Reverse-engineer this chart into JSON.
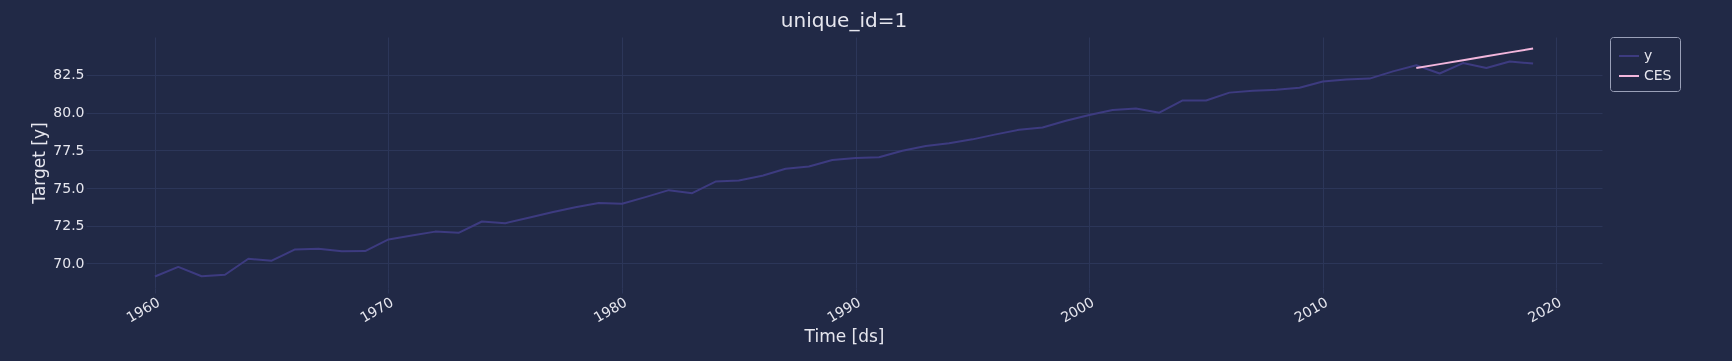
{
  "chart_data": {
    "type": "line",
    "title": "unique_id=1",
    "xlabel": "Time [ds]",
    "ylabel": "Target [y]",
    "xlim": [
      1957.05,
      2021.95
    ],
    "xticks": [
      1960,
      1970,
      1980,
      1990,
      2000,
      2010,
      2020
    ],
    "ylim": [
      68.37,
      85.02
    ],
    "yticks": [
      {
        "value": 70,
        "label": "70.0"
      },
      72.5,
      {
        "value": 75,
        "label": "75.0"
      },
      77.5,
      {
        "value": 80,
        "label": "80.0"
      },
      82.5
    ],
    "grid": true,
    "legend": "top right",
    "line_style": "solid",
    "marker": "none",
    "series": [
      {
        "name": "y",
        "color": "#3d3b80",
        "x": [
          1960,
          1961,
          1962,
          1963,
          1964,
          1965,
          1966,
          1967,
          1968,
          1969,
          1970,
          1971,
          1972,
          1973,
          1974,
          1975,
          1976,
          1977,
          1978,
          1979,
          1980,
          1981,
          1982,
          1983,
          1984,
          1985,
          1986,
          1987,
          1988,
          1989,
          1990,
          1991,
          1992,
          1993,
          1994,
          1995,
          1996,
          1997,
          1998,
          1999,
          2000,
          2001,
          2002,
          2003,
          2004,
          2005,
          2006,
          2007,
          2008,
          2009,
          2010,
          2011,
          2012,
          2013,
          2014,
          2015,
          2016,
          2017,
          2018,
          2019
        ],
        "values": [
          69.13,
          69.77,
          69.15,
          69.25,
          70.31,
          70.18,
          70.93,
          70.98,
          70.8,
          70.82,
          71.59,
          71.85,
          72.11,
          72.03,
          72.78,
          72.67,
          73.03,
          73.39,
          73.73,
          74.01,
          73.96,
          74.4,
          74.86,
          74.66,
          75.43,
          75.5,
          75.81,
          76.28,
          76.43,
          76.86,
          76.99,
          77.04,
          77.48,
          77.79,
          77.97,
          78.23,
          78.56,
          78.87,
          79.02,
          79.46,
          79.85,
          80.18,
          80.28,
          80.0,
          80.81,
          80.81,
          81.33,
          81.46,
          81.52,
          81.65,
          82.07,
          82.2,
          82.26,
          82.74,
          83.15,
          82.6,
          83.29,
          82.96,
          83.4,
          83.26
        ]
      },
      {
        "name": "CES",
        "color": "#f2b6dc",
        "x": [
          2014,
          2015,
          2016,
          2017,
          2018,
          2019
        ],
        "values": [
          82.96,
          83.22,
          83.48,
          83.74,
          84.0,
          84.26
        ]
      }
    ]
  }
}
